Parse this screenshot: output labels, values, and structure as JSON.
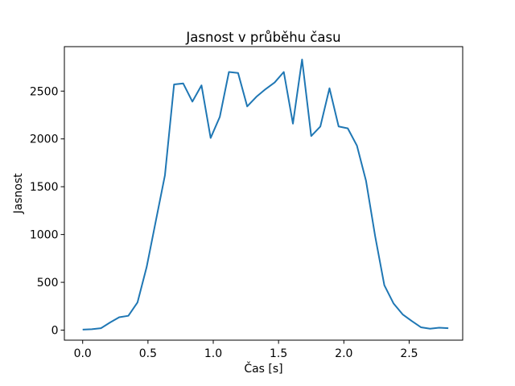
{
  "figure": {
    "background": "#ffffff",
    "axes_color": "#000000",
    "text_color": "#000000"
  },
  "chart_data": {
    "type": "line",
    "title": "Jasnost v průběhu času",
    "xlabel": "Čas [s]",
    "ylabel": "Jasnost",
    "line_color": "#1f77b4",
    "grid": false,
    "legend": null,
    "xlim": [
      -0.14,
      2.91
    ],
    "ylim": [
      -105,
      2965
    ],
    "xticks": [
      0.0,
      0.5,
      1.0,
      1.5,
      2.0,
      2.5
    ],
    "xtick_labels": [
      "0.0",
      "0.5",
      "1.0",
      "1.5",
      "2.0",
      "2.5"
    ],
    "yticks": [
      0,
      500,
      1000,
      1500,
      2000,
      2500
    ],
    "ytick_labels": [
      "0",
      "500",
      "1000",
      "1500",
      "2000",
      "2500"
    ],
    "x": [
      0.0,
      0.07,
      0.14,
      0.21,
      0.28,
      0.35,
      0.42,
      0.49,
      0.56,
      0.63,
      0.7,
      0.77,
      0.84,
      0.91,
      0.98,
      1.05,
      1.12,
      1.19,
      1.26,
      1.33,
      1.4,
      1.47,
      1.54,
      1.61,
      1.68,
      1.75,
      1.82,
      1.89,
      1.96,
      2.03,
      2.1,
      2.17,
      2.24,
      2.31,
      2.38,
      2.45,
      2.52,
      2.59,
      2.66,
      2.73,
      2.8
    ],
    "y": [
      5,
      10,
      20,
      80,
      135,
      150,
      290,
      660,
      1140,
      1620,
      2570,
      2580,
      2390,
      2560,
      2010,
      2230,
      2700,
      2690,
      2340,
      2440,
      2520,
      2590,
      2700,
      2160,
      2830,
      2030,
      2130,
      2530,
      2130,
      2110,
      1930,
      1560,
      980,
      470,
      280,
      165,
      95,
      30,
      15,
      25,
      20
    ]
  }
}
